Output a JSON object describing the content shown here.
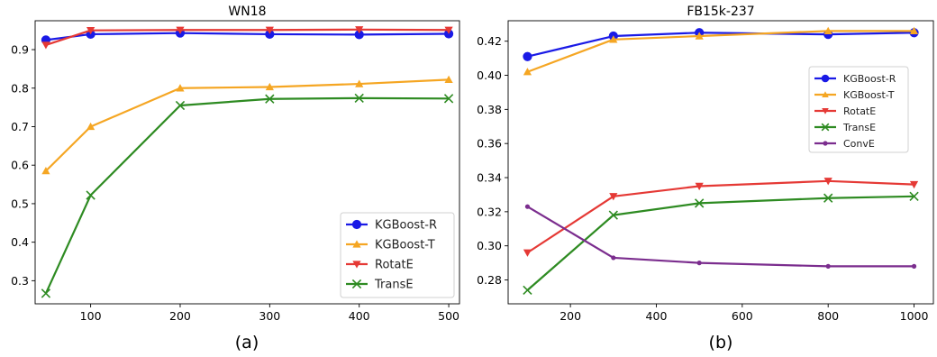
{
  "chart_data": [
    {
      "type": "line",
      "title": "WN18",
      "caption": "(a)",
      "xlim": [
        38,
        512
      ],
      "ylim": [
        0.24,
        0.975
      ],
      "xticks": [
        100,
        200,
        300,
        400,
        500
      ],
      "yticks": [
        0.3,
        0.4,
        0.5,
        0.6,
        0.7,
        0.8,
        0.9
      ],
      "ytick_labels": [
        "0.3",
        "0.4",
        "0.5",
        "0.6",
        "0.7",
        "0.8",
        "0.9"
      ],
      "legend_position": "bottom-right",
      "x": [
        50,
        100,
        200,
        300,
        400,
        500
      ],
      "series": [
        {
          "name": "KGBoost-R",
          "color": "#1a1ae6",
          "marker": "circle",
          "values": [
            0.925,
            0.94,
            0.943,
            0.94,
            0.939,
            0.941
          ]
        },
        {
          "name": "KGBoost-T",
          "color": "#f5a623",
          "marker": "triangle-up",
          "values": [
            0.585,
            0.7,
            0.8,
            0.803,
            0.811,
            0.822
          ]
        },
        {
          "name": "RotatE",
          "color": "#e53935",
          "marker": "triangle-down",
          "values": [
            0.912,
            0.95,
            0.951,
            0.951,
            0.952,
            0.951
          ]
        },
        {
          "name": "TransE",
          "color": "#2e8b22",
          "marker": "x",
          "values": [
            0.267,
            0.522,
            0.755,
            0.772,
            0.774,
            0.773
          ]
        }
      ]
    },
    {
      "type": "line",
      "title": "FB15k-237",
      "caption": "(b)",
      "xlim": [
        55,
        1045
      ],
      "ylim": [
        0.266,
        0.432
      ],
      "xticks": [
        200,
        400,
        600,
        800,
        1000
      ],
      "yticks": [
        0.28,
        0.3,
        0.32,
        0.34,
        0.36,
        0.38,
        0.4,
        0.42
      ],
      "ytick_labels": [
        "0.28",
        "0.30",
        "0.32",
        "0.34",
        "0.36",
        "0.38",
        "0.40",
        "0.42"
      ],
      "legend_position": "upper-right",
      "x": [
        100,
        300,
        500,
        800,
        1000
      ],
      "series": [
        {
          "name": "KGBoost-R",
          "color": "#1a1ae6",
          "marker": "circle",
          "values": [
            0.411,
            0.423,
            0.425,
            0.424,
            0.425
          ]
        },
        {
          "name": "KGBoost-T",
          "color": "#f5a623",
          "marker": "triangle-up",
          "values": [
            0.402,
            0.421,
            0.423,
            0.426,
            0.426
          ]
        },
        {
          "name": "RotatE",
          "color": "#e53935",
          "marker": "triangle-down",
          "values": [
            0.296,
            0.329,
            0.335,
            0.338,
            0.336
          ]
        },
        {
          "name": "TransE",
          "color": "#2e8b22",
          "marker": "x",
          "values": [
            0.274,
            0.318,
            0.325,
            0.328,
            0.329
          ]
        },
        {
          "name": "ConvE",
          "color": "#7b2d8e",
          "marker": "dot",
          "values": [
            0.323,
            0.293,
            0.29,
            0.288,
            0.288
          ]
        }
      ]
    }
  ]
}
